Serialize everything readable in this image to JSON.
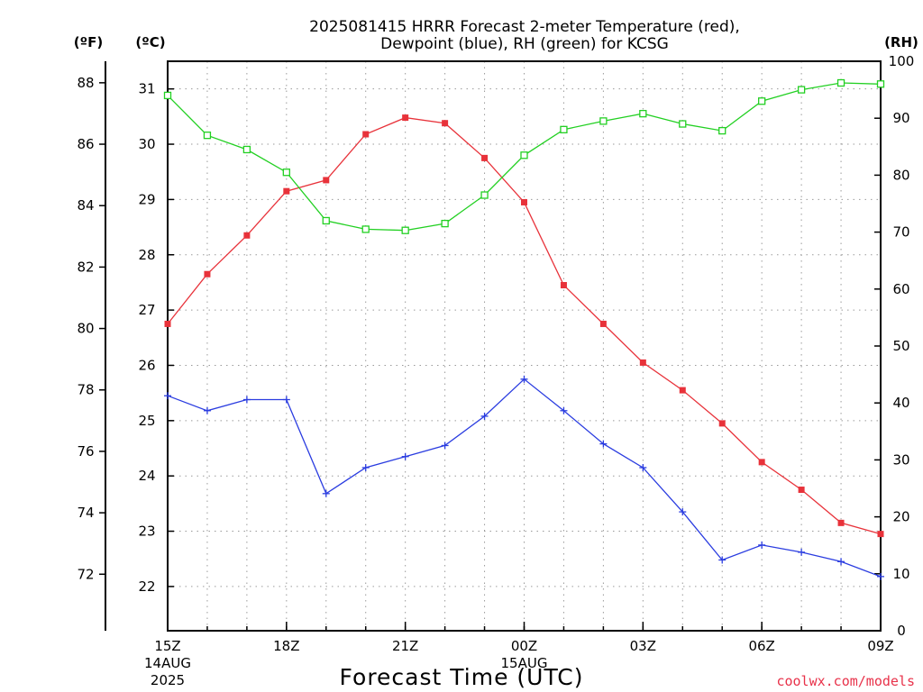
{
  "chart_data": {
    "type": "line",
    "title_line1": "2025081415 HRRR Forecast 2-meter Temperature (red),",
    "title_line2": "Dewpoint (blue), RH (green) for KCSG",
    "xlabel": "Forecast Time (UTC)",
    "credit": "coolwx.com/models",
    "axis_units": {
      "fahrenheit": "(ºF)",
      "celsius": "(ºC)",
      "rh": "(RH)"
    },
    "x_hours": [
      0,
      1,
      2,
      3,
      4,
      5,
      6,
      7,
      8,
      9,
      10,
      11,
      12,
      13,
      14,
      15,
      16,
      17,
      18
    ],
    "x_ticks": [
      {
        "hour": 0,
        "label": "15Z",
        "sub1": "14AUG",
        "sub2": "2025"
      },
      {
        "hour": 3,
        "label": "18Z",
        "sub1": "",
        "sub2": ""
      },
      {
        "hour": 6,
        "label": "21Z",
        "sub1": "",
        "sub2": ""
      },
      {
        "hour": 9,
        "label": "00Z",
        "sub1": "15AUG",
        "sub2": ""
      },
      {
        "hour": 12,
        "label": "03Z",
        "sub1": "",
        "sub2": ""
      },
      {
        "hour": 15,
        "label": "06Z",
        "sub1": "",
        "sub2": ""
      },
      {
        "hour": 18,
        "label": "09Z",
        "sub1": "",
        "sub2": ""
      }
    ],
    "left_f_ticks": [
      "72",
      "74",
      "76",
      "78",
      "80",
      "82",
      "84",
      "86",
      "88"
    ],
    "left_c_ticks": [
      "22",
      "23",
      "24",
      "25",
      "26",
      "27",
      "28",
      "29",
      "30",
      "31"
    ],
    "right_rh_ticks": [
      "0",
      "10",
      "20",
      "30",
      "40",
      "50",
      "60",
      "70",
      "80",
      "90",
      "100"
    ],
    "c_range": [
      21.2,
      31.5
    ],
    "rh_range": [
      0,
      100
    ],
    "grid": true,
    "series": [
      {
        "color": "#e8323a",
        "marker": "filled-square",
        "axis": "celsius",
        "values": [
          26.75,
          27.65,
          28.35,
          29.15,
          29.35,
          30.18,
          30.48,
          30.38,
          29.75,
          28.95,
          27.45,
          26.75,
          26.05,
          25.55,
          24.95,
          24.25,
          23.75,
          23.15,
          22.95
        ]
      },
      {
        "color": "#2a3ce0",
        "marker": "plus",
        "axis": "celsius",
        "values": [
          25.45,
          25.18,
          25.38,
          25.38,
          23.68,
          24.15,
          24.35,
          24.55,
          25.08,
          25.75,
          25.18,
          24.58,
          24.15,
          23.35,
          22.48,
          22.75,
          22.62,
          22.45,
          22.18
        ]
      },
      {
        "color": "#22d022",
        "marker": "open-square",
        "axis": "rh",
        "values": [
          94,
          87,
          84.5,
          80.5,
          72,
          70.5,
          70.3,
          71.5,
          76.5,
          83.5,
          88,
          89.5,
          90.8,
          89,
          87.8,
          93,
          95,
          96.2,
          96
        ]
      }
    ]
  }
}
